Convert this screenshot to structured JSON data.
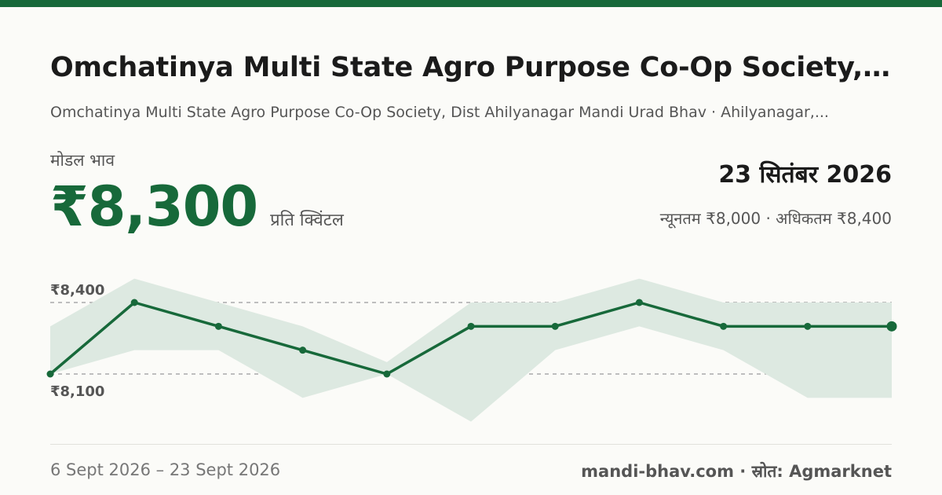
{
  "header": {
    "title": "Omchatinya Multi State Agro Purpose Co-Op Society,...",
    "subtitle": "Omchatinya Multi State Agro Purpose Co-Op Society, Dist Ahilyanagar Mandi Urad Bhav · Ahilyanagar,..."
  },
  "price": {
    "label": "मोडल भाव",
    "value": "₹8,300",
    "unit": "प्रति क्विंटल"
  },
  "summary": {
    "date": "23 सितंबर 2026",
    "range": "न्यूनतम ₹8,000 · अधिकतम ₹8,400"
  },
  "footer": {
    "period": "6 Sept 2026 – 23 Sept 2026",
    "source": "mandi-bhav.com · स्रोत: Agmarknet"
  },
  "colors": {
    "accent": "#17693a",
    "band": "#dde9e1",
    "gridline": "#9a9a9a"
  },
  "chart_data": {
    "type": "line",
    "x": [
      "6 Sept 2026",
      "",
      "",
      "",
      "",
      "",
      "",
      "",
      "",
      "",
      "23 Sept 2026"
    ],
    "series": [
      {
        "values": [
          8100,
          8400,
          8300,
          8200,
          8100,
          8300,
          8300,
          8400,
          8300,
          8300,
          8300
        ]
      }
    ],
    "band": {
      "min": [
        8100,
        8200,
        8200,
        8000,
        8100,
        7900,
        8200,
        8300,
        8200,
        8000,
        8000
      ],
      "max": [
        8300,
        8500,
        8400,
        8300,
        8150,
        8400,
        8400,
        8500,
        8400,
        8400,
        8400
      ]
    },
    "yticks": [
      8400,
      8100
    ],
    "ytick_labels": [
      "₹8,400",
      "₹8,100"
    ],
    "ylim": [
      7900,
      8500
    ],
    "grid": "dashed",
    "legend": "none"
  }
}
